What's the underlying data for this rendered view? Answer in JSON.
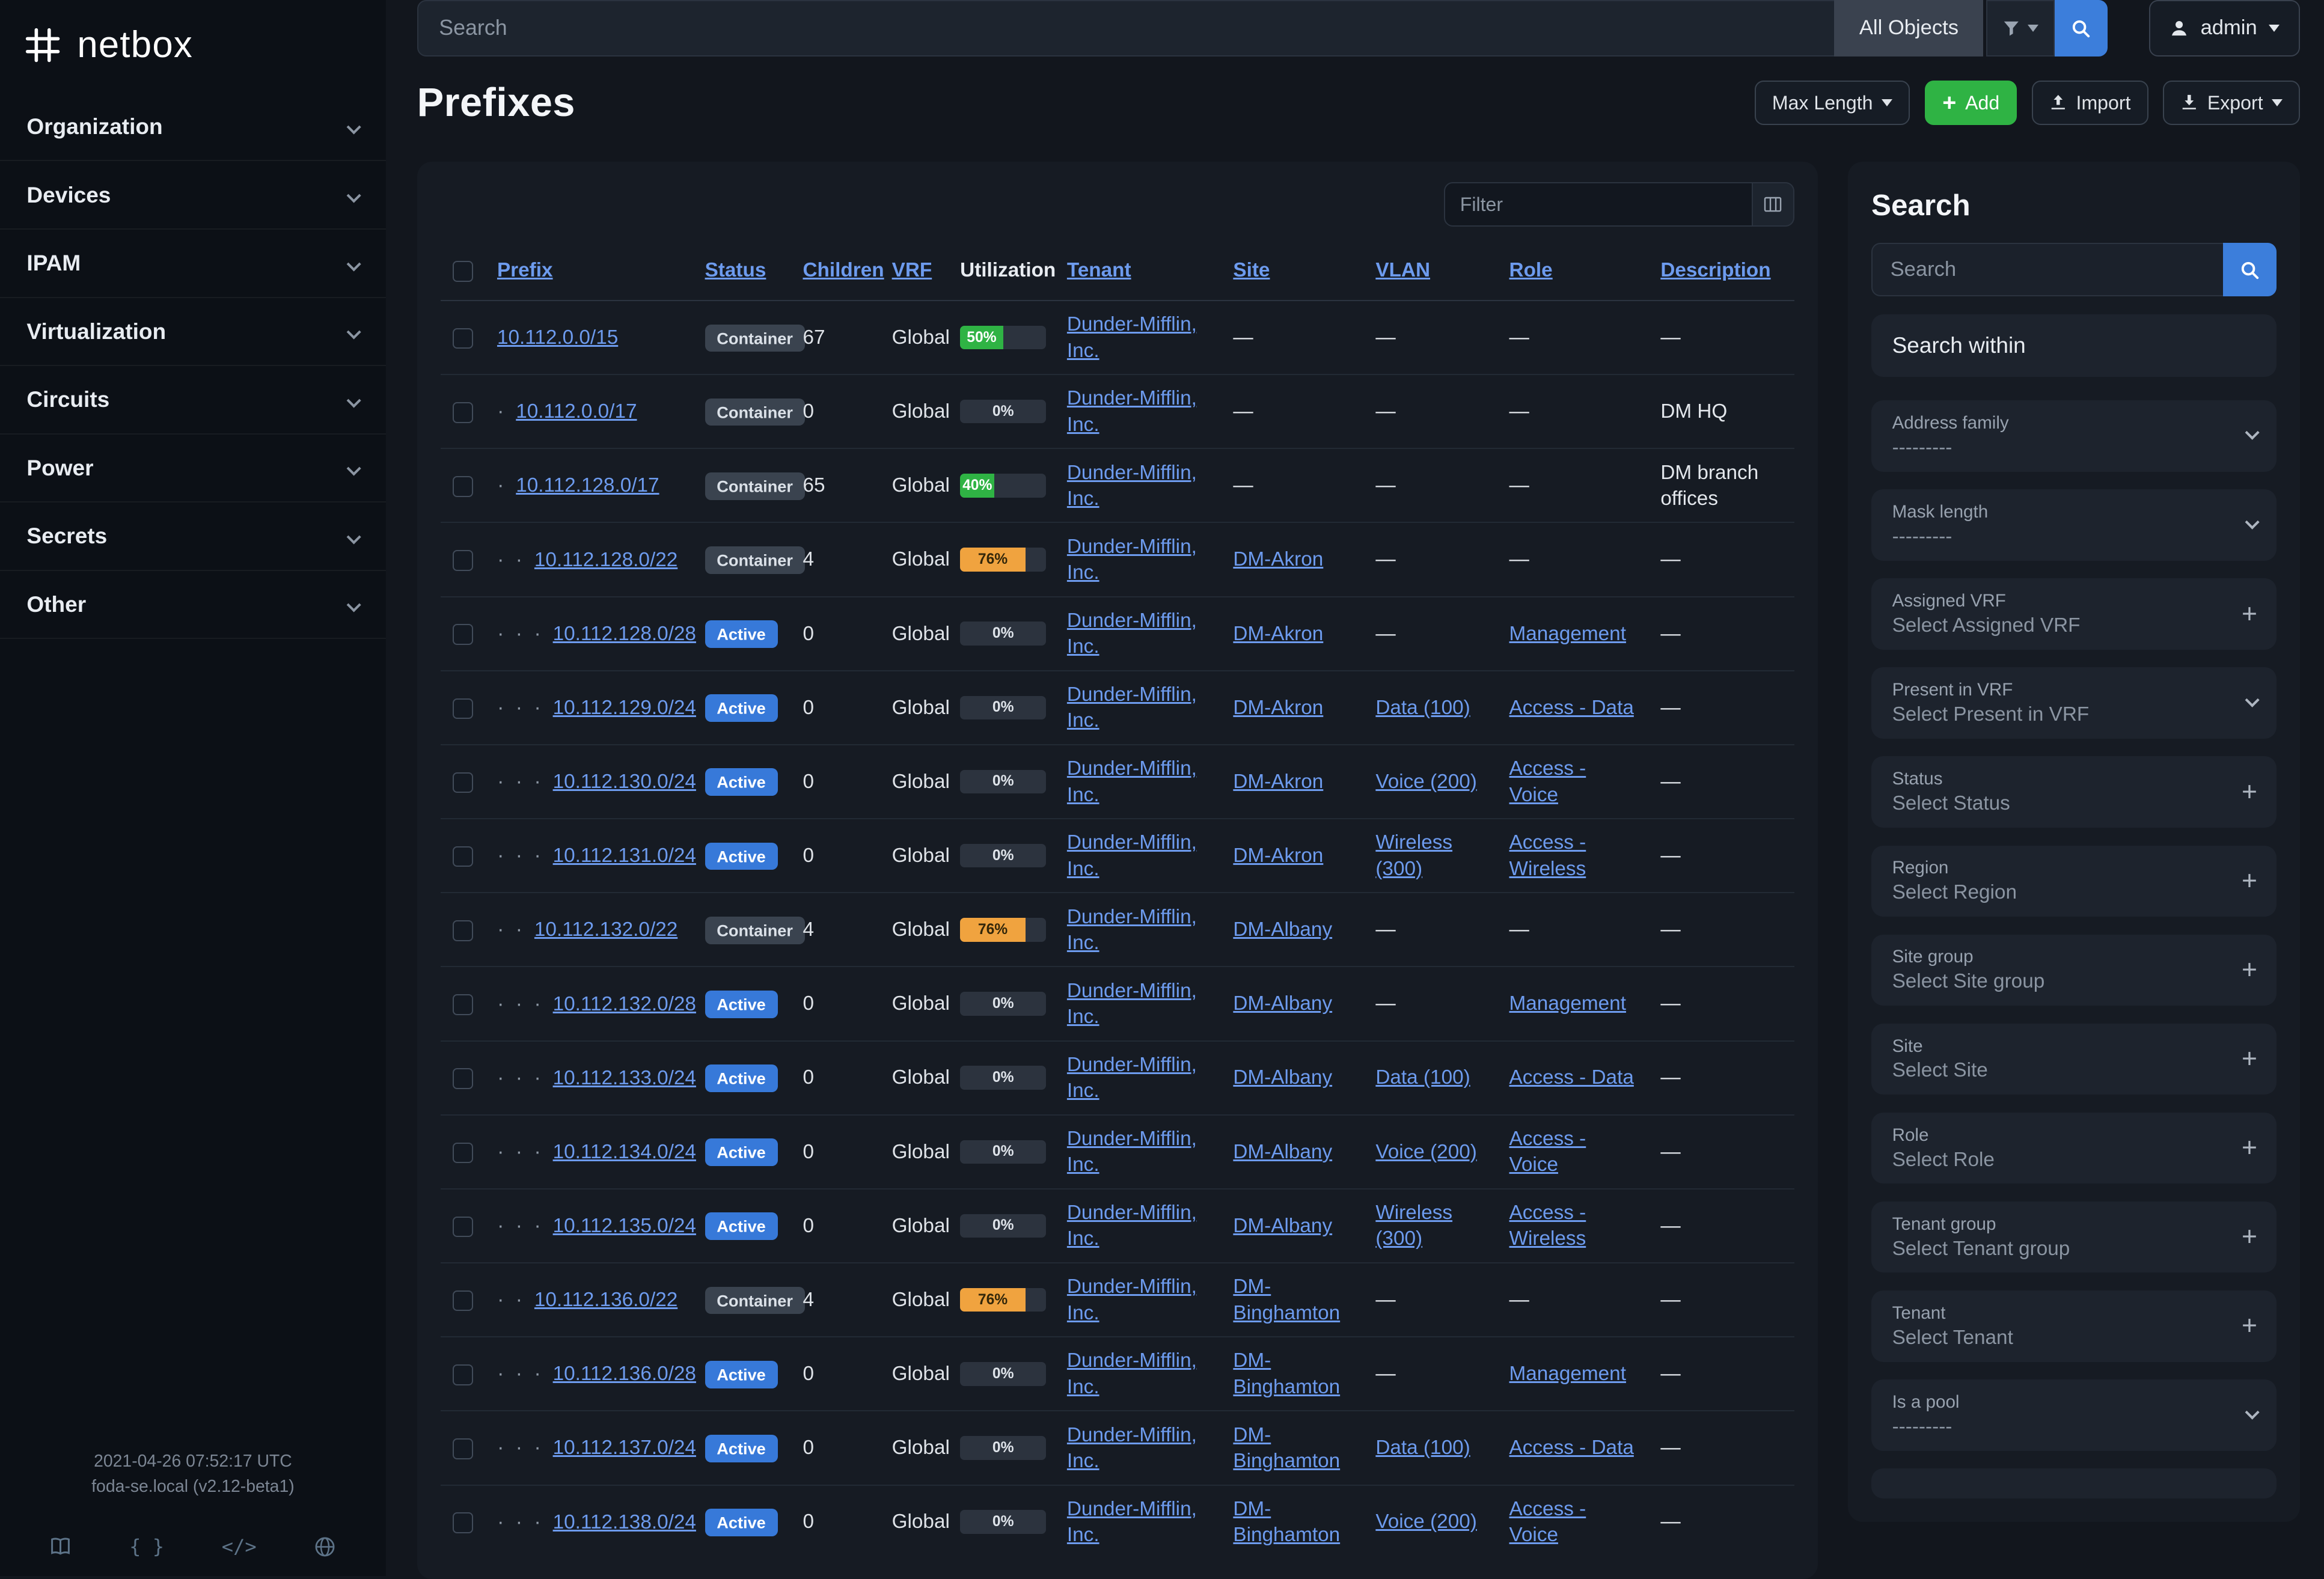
{
  "brand": {
    "name": "netbox"
  },
  "icons": {
    "search": "magnifier",
    "filter": "funnel",
    "user": "person-silhouette",
    "chevron": "chevron-down",
    "plus": "plus-sign",
    "docs": "book",
    "api": "curly-braces",
    "code": "angle-brackets",
    "globe": "globe"
  },
  "sidebar": {
    "items": [
      {
        "label": "Organization"
      },
      {
        "label": "Devices"
      },
      {
        "label": "IPAM"
      },
      {
        "label": "Virtualization"
      },
      {
        "label": "Circuits"
      },
      {
        "label": "Power"
      },
      {
        "label": "Secrets"
      },
      {
        "label": "Other"
      }
    ],
    "footer": {
      "timestamp": "2021-04-26 07:52:17 UTC",
      "version": "foda-se.local (v2.12-beta1)"
    }
  },
  "topbar": {
    "search_placeholder": "Search",
    "scope_label": "All Objects",
    "user_label": "admin"
  },
  "page": {
    "title": "Prefixes",
    "actions": {
      "max_length": "Max Length",
      "add": "Add",
      "import": "Import",
      "export": "Export"
    }
  },
  "table": {
    "filter_placeholder": "Filter",
    "columns": [
      {
        "key": "prefix",
        "label": "Prefix",
        "sortable": true
      },
      {
        "key": "status",
        "label": "Status",
        "sortable": true
      },
      {
        "key": "children",
        "label": "Children",
        "sortable": true
      },
      {
        "key": "vrf",
        "label": "VRF",
        "sortable": true
      },
      {
        "key": "utilization",
        "label": "Utilization",
        "sortable": false
      },
      {
        "key": "tenant",
        "label": "Tenant",
        "sortable": true
      },
      {
        "key": "site",
        "label": "Site",
        "sortable": true
      },
      {
        "key": "vlan",
        "label": "VLAN",
        "sortable": true
      },
      {
        "key": "role",
        "label": "Role",
        "sortable": true
      },
      {
        "key": "description",
        "label": "Description",
        "sortable": true
      }
    ],
    "rows": [
      {
        "depth": 0,
        "prefix": "10.112.0.0/15",
        "status": "Container",
        "children": 67,
        "vrf": "Global",
        "util": 50,
        "util_color": "green",
        "tenant": "Dunder-Mifflin, Inc.",
        "site": "—",
        "vlan": "—",
        "role": "—",
        "description": "—"
      },
      {
        "depth": 1,
        "prefix": "10.112.0.0/17",
        "status": "Container",
        "children": 0,
        "vrf": "Global",
        "util": 0,
        "util_color": "none",
        "tenant": "Dunder-Mifflin, Inc.",
        "site": "—",
        "vlan": "—",
        "role": "—",
        "description": "DM HQ"
      },
      {
        "depth": 1,
        "prefix": "10.112.128.0/17",
        "status": "Container",
        "children": 65,
        "vrf": "Global",
        "util": 40,
        "util_color": "green",
        "tenant": "Dunder-Mifflin, Inc.",
        "site": "—",
        "vlan": "—",
        "role": "—",
        "description": "DM branch offices"
      },
      {
        "depth": 2,
        "prefix": "10.112.128.0/22",
        "status": "Container",
        "children": 4,
        "vrf": "Global",
        "util": 76,
        "util_color": "orange",
        "tenant": "Dunder-Mifflin, Inc.",
        "site": "DM-Akron",
        "vlan": "—",
        "role": "—",
        "description": "—"
      },
      {
        "depth": 3,
        "prefix": "10.112.128.0/28",
        "status": "Active",
        "children": 0,
        "vrf": "Global",
        "util": 0,
        "util_color": "none",
        "tenant": "Dunder-Mifflin, Inc.",
        "site": "DM-Akron",
        "vlan": "—",
        "role": "Management",
        "description": "—"
      },
      {
        "depth": 3,
        "prefix": "10.112.129.0/24",
        "status": "Active",
        "children": 0,
        "vrf": "Global",
        "util": 0,
        "util_color": "none",
        "tenant": "Dunder-Mifflin, Inc.",
        "site": "DM-Akron",
        "vlan": "Data (100)",
        "role": "Access - Data",
        "description": "—"
      },
      {
        "depth": 3,
        "prefix": "10.112.130.0/24",
        "status": "Active",
        "children": 0,
        "vrf": "Global",
        "util": 0,
        "util_color": "none",
        "tenant": "Dunder-Mifflin, Inc.",
        "site": "DM-Akron",
        "vlan": "Voice (200)",
        "role": "Access - Voice",
        "description": "—"
      },
      {
        "depth": 3,
        "prefix": "10.112.131.0/24",
        "status": "Active",
        "children": 0,
        "vrf": "Global",
        "util": 0,
        "util_color": "none",
        "tenant": "Dunder-Mifflin, Inc.",
        "site": "DM-Akron",
        "vlan": "Wireless (300)",
        "role": "Access - Wireless",
        "description": "—"
      },
      {
        "depth": 2,
        "prefix": "10.112.132.0/22",
        "status": "Container",
        "children": 4,
        "vrf": "Global",
        "util": 76,
        "util_color": "orange",
        "tenant": "Dunder-Mifflin, Inc.",
        "site": "DM-Albany",
        "vlan": "—",
        "role": "—",
        "description": "—"
      },
      {
        "depth": 3,
        "prefix": "10.112.132.0/28",
        "status": "Active",
        "children": 0,
        "vrf": "Global",
        "util": 0,
        "util_color": "none",
        "tenant": "Dunder-Mifflin, Inc.",
        "site": "DM-Albany",
        "vlan": "—",
        "role": "Management",
        "description": "—"
      },
      {
        "depth": 3,
        "prefix": "10.112.133.0/24",
        "status": "Active",
        "children": 0,
        "vrf": "Global",
        "util": 0,
        "util_color": "none",
        "tenant": "Dunder-Mifflin, Inc.",
        "site": "DM-Albany",
        "vlan": "Data (100)",
        "role": "Access - Data",
        "description": "—"
      },
      {
        "depth": 3,
        "prefix": "10.112.134.0/24",
        "status": "Active",
        "children": 0,
        "vrf": "Global",
        "util": 0,
        "util_color": "none",
        "tenant": "Dunder-Mifflin, Inc.",
        "site": "DM-Albany",
        "vlan": "Voice (200)",
        "role": "Access - Voice",
        "description": "—"
      },
      {
        "depth": 3,
        "prefix": "10.112.135.0/24",
        "status": "Active",
        "children": 0,
        "vrf": "Global",
        "util": 0,
        "util_color": "none",
        "tenant": "Dunder-Mifflin, Inc.",
        "site": "DM-Albany",
        "vlan": "Wireless (300)",
        "role": "Access - Wireless",
        "description": "—"
      },
      {
        "depth": 2,
        "prefix": "10.112.136.0/22",
        "status": "Container",
        "children": 4,
        "vrf": "Global",
        "util": 76,
        "util_color": "orange",
        "tenant": "Dunder-Mifflin, Inc.",
        "site": "DM-Binghamton",
        "vlan": "—",
        "role": "—",
        "description": "—"
      },
      {
        "depth": 3,
        "prefix": "10.112.136.0/28",
        "status": "Active",
        "children": 0,
        "vrf": "Global",
        "util": 0,
        "util_color": "none",
        "tenant": "Dunder-Mifflin, Inc.",
        "site": "DM-Binghamton",
        "vlan": "—",
        "role": "Management",
        "description": "—"
      },
      {
        "depth": 3,
        "prefix": "10.112.137.0/24",
        "status": "Active",
        "children": 0,
        "vrf": "Global",
        "util": 0,
        "util_color": "none",
        "tenant": "Dunder-Mifflin, Inc.",
        "site": "DM-Binghamton",
        "vlan": "Data (100)",
        "role": "Access - Data",
        "description": "—"
      },
      {
        "depth": 3,
        "prefix": "10.112.138.0/24",
        "status": "Active",
        "children": 0,
        "vrf": "Global",
        "util": 0,
        "util_color": "none",
        "tenant": "Dunder-Mifflin, Inc.",
        "site": "DM-Binghamton",
        "vlan": "Voice (200)",
        "role": "Access - Voice",
        "description": "—"
      }
    ]
  },
  "filter_panel": {
    "title": "Search",
    "search_placeholder": "Search",
    "within_label": "Search within",
    "fields": [
      {
        "label": "Address family",
        "value": "---------",
        "control": "select"
      },
      {
        "label": "Mask length",
        "value": "---------",
        "control": "select"
      },
      {
        "label": "Assigned VRF",
        "value": "Select Assigned VRF",
        "control": "add"
      },
      {
        "label": "Present in VRF",
        "value": "Select Present in VRF",
        "control": "select"
      },
      {
        "label": "Status",
        "value": "Select Status",
        "control": "add"
      },
      {
        "label": "Region",
        "value": "Select Region",
        "control": "add"
      },
      {
        "label": "Site group",
        "value": "Select Site group",
        "control": "add"
      },
      {
        "label": "Site",
        "value": "Select Site",
        "control": "add"
      },
      {
        "label": "Role",
        "value": "Select Role",
        "control": "add"
      },
      {
        "label": "Tenant group",
        "value": "Select Tenant group",
        "control": "add"
      },
      {
        "label": "Tenant",
        "value": "Select Tenant",
        "control": "add"
      },
      {
        "label": "Is a pool",
        "value": "---------",
        "control": "select"
      }
    ]
  }
}
